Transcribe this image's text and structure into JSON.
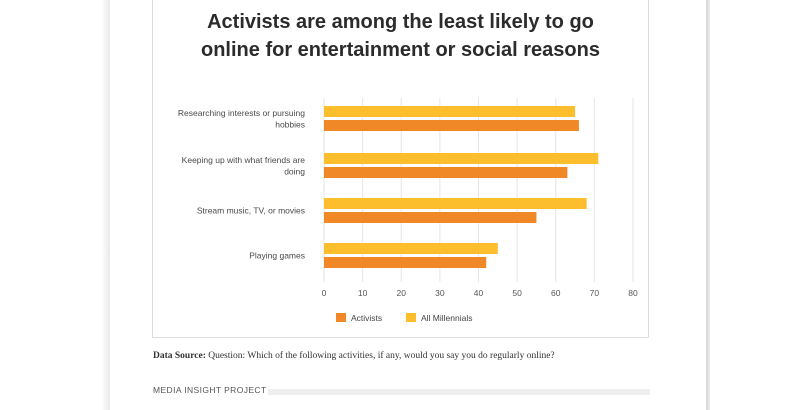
{
  "chart_data": {
    "type": "bar",
    "orientation": "horizontal",
    "title": "Activists are among the least likely to go online for entertainment or social reasons",
    "title_lines": [
      "Activists are among the least likely to go",
      "online for entertainment or social reasons"
    ],
    "categories": [
      [
        "Researching interests or pursuing",
        "hobbies"
      ],
      [
        "Keeping up with what friends are",
        "doing"
      ],
      [
        "Stream music, TV, or movies"
      ],
      [
        "Playing games"
      ]
    ],
    "series": [
      {
        "name": "All Millennials",
        "color": "#fcbe2c",
        "values": [
          65,
          71,
          68,
          45
        ]
      },
      {
        "name": "Activists",
        "color": "#f08827",
        "values": [
          66,
          63,
          55,
          42
        ]
      }
    ],
    "legend_order": [
      "Activists",
      "All Millennials"
    ],
    "xlim": [
      0,
      80
    ],
    "xticks": [
      "0",
      "10",
      "20",
      "30",
      "40",
      "50",
      "60",
      "70",
      "80"
    ],
    "grid": true,
    "legend_position": "bottom"
  },
  "source": {
    "label": "Data Source:",
    "text": "Question: Which of the following activities, if any, would you say you do regularly online?"
  },
  "footer": {
    "label": "MEDIA INSIGHT PROJECT"
  }
}
